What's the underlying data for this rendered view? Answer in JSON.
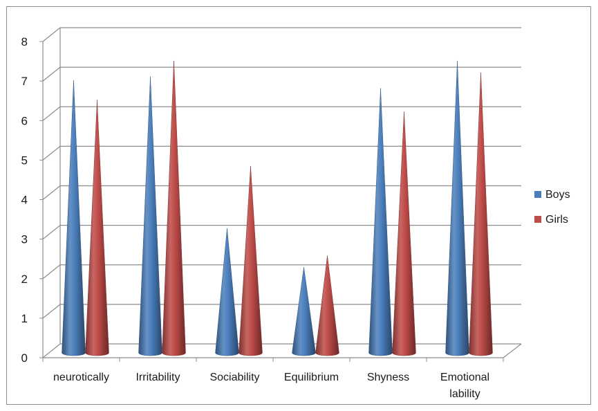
{
  "chart_data": {
    "type": "bar",
    "style": "3d-cone",
    "categories": [
      "neurotically",
      "Irritability",
      "Sociability",
      "Equilibrium",
      "Shyness",
      "Emotional lability"
    ],
    "series": [
      {
        "name": "Boys",
        "color": "#4a7ebb",
        "values": [
          7.0,
          7.1,
          3.2,
          2.2,
          6.8,
          7.5
        ]
      },
      {
        "name": "Girls",
        "color": "#be4b48",
        "values": [
          6.5,
          7.5,
          4.8,
          2.5,
          6.2,
          7.2
        ]
      }
    ],
    "ylim": [
      0,
      8
    ],
    "yticks": [
      "0",
      "1",
      "2",
      "3",
      "4",
      "5",
      "6",
      "7",
      "8"
    ],
    "grid": true,
    "legend_position": "right",
    "title": "",
    "xlabel": "",
    "ylabel": ""
  }
}
